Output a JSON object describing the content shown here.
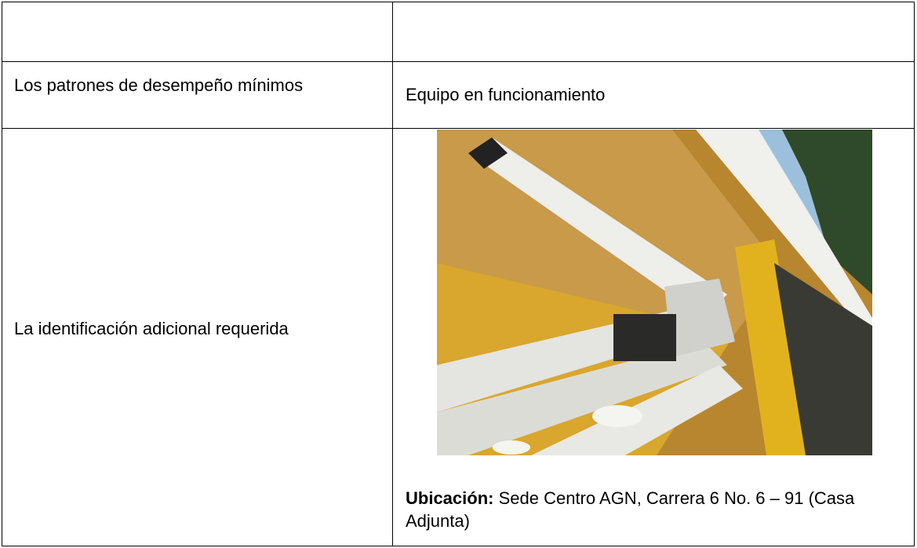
{
  "table": {
    "rows": [
      {
        "label": "Los patrones de desempeño mínimos",
        "value": "Equipo en funcionamiento"
      },
      {
        "label": "La identificación adicional requerida",
        "caption_label": "Ubicación:",
        "caption_text": "Sede Centro AGN, Carrera 6 No. 6 – 91 (Casa Adjunta)"
      }
    ]
  }
}
